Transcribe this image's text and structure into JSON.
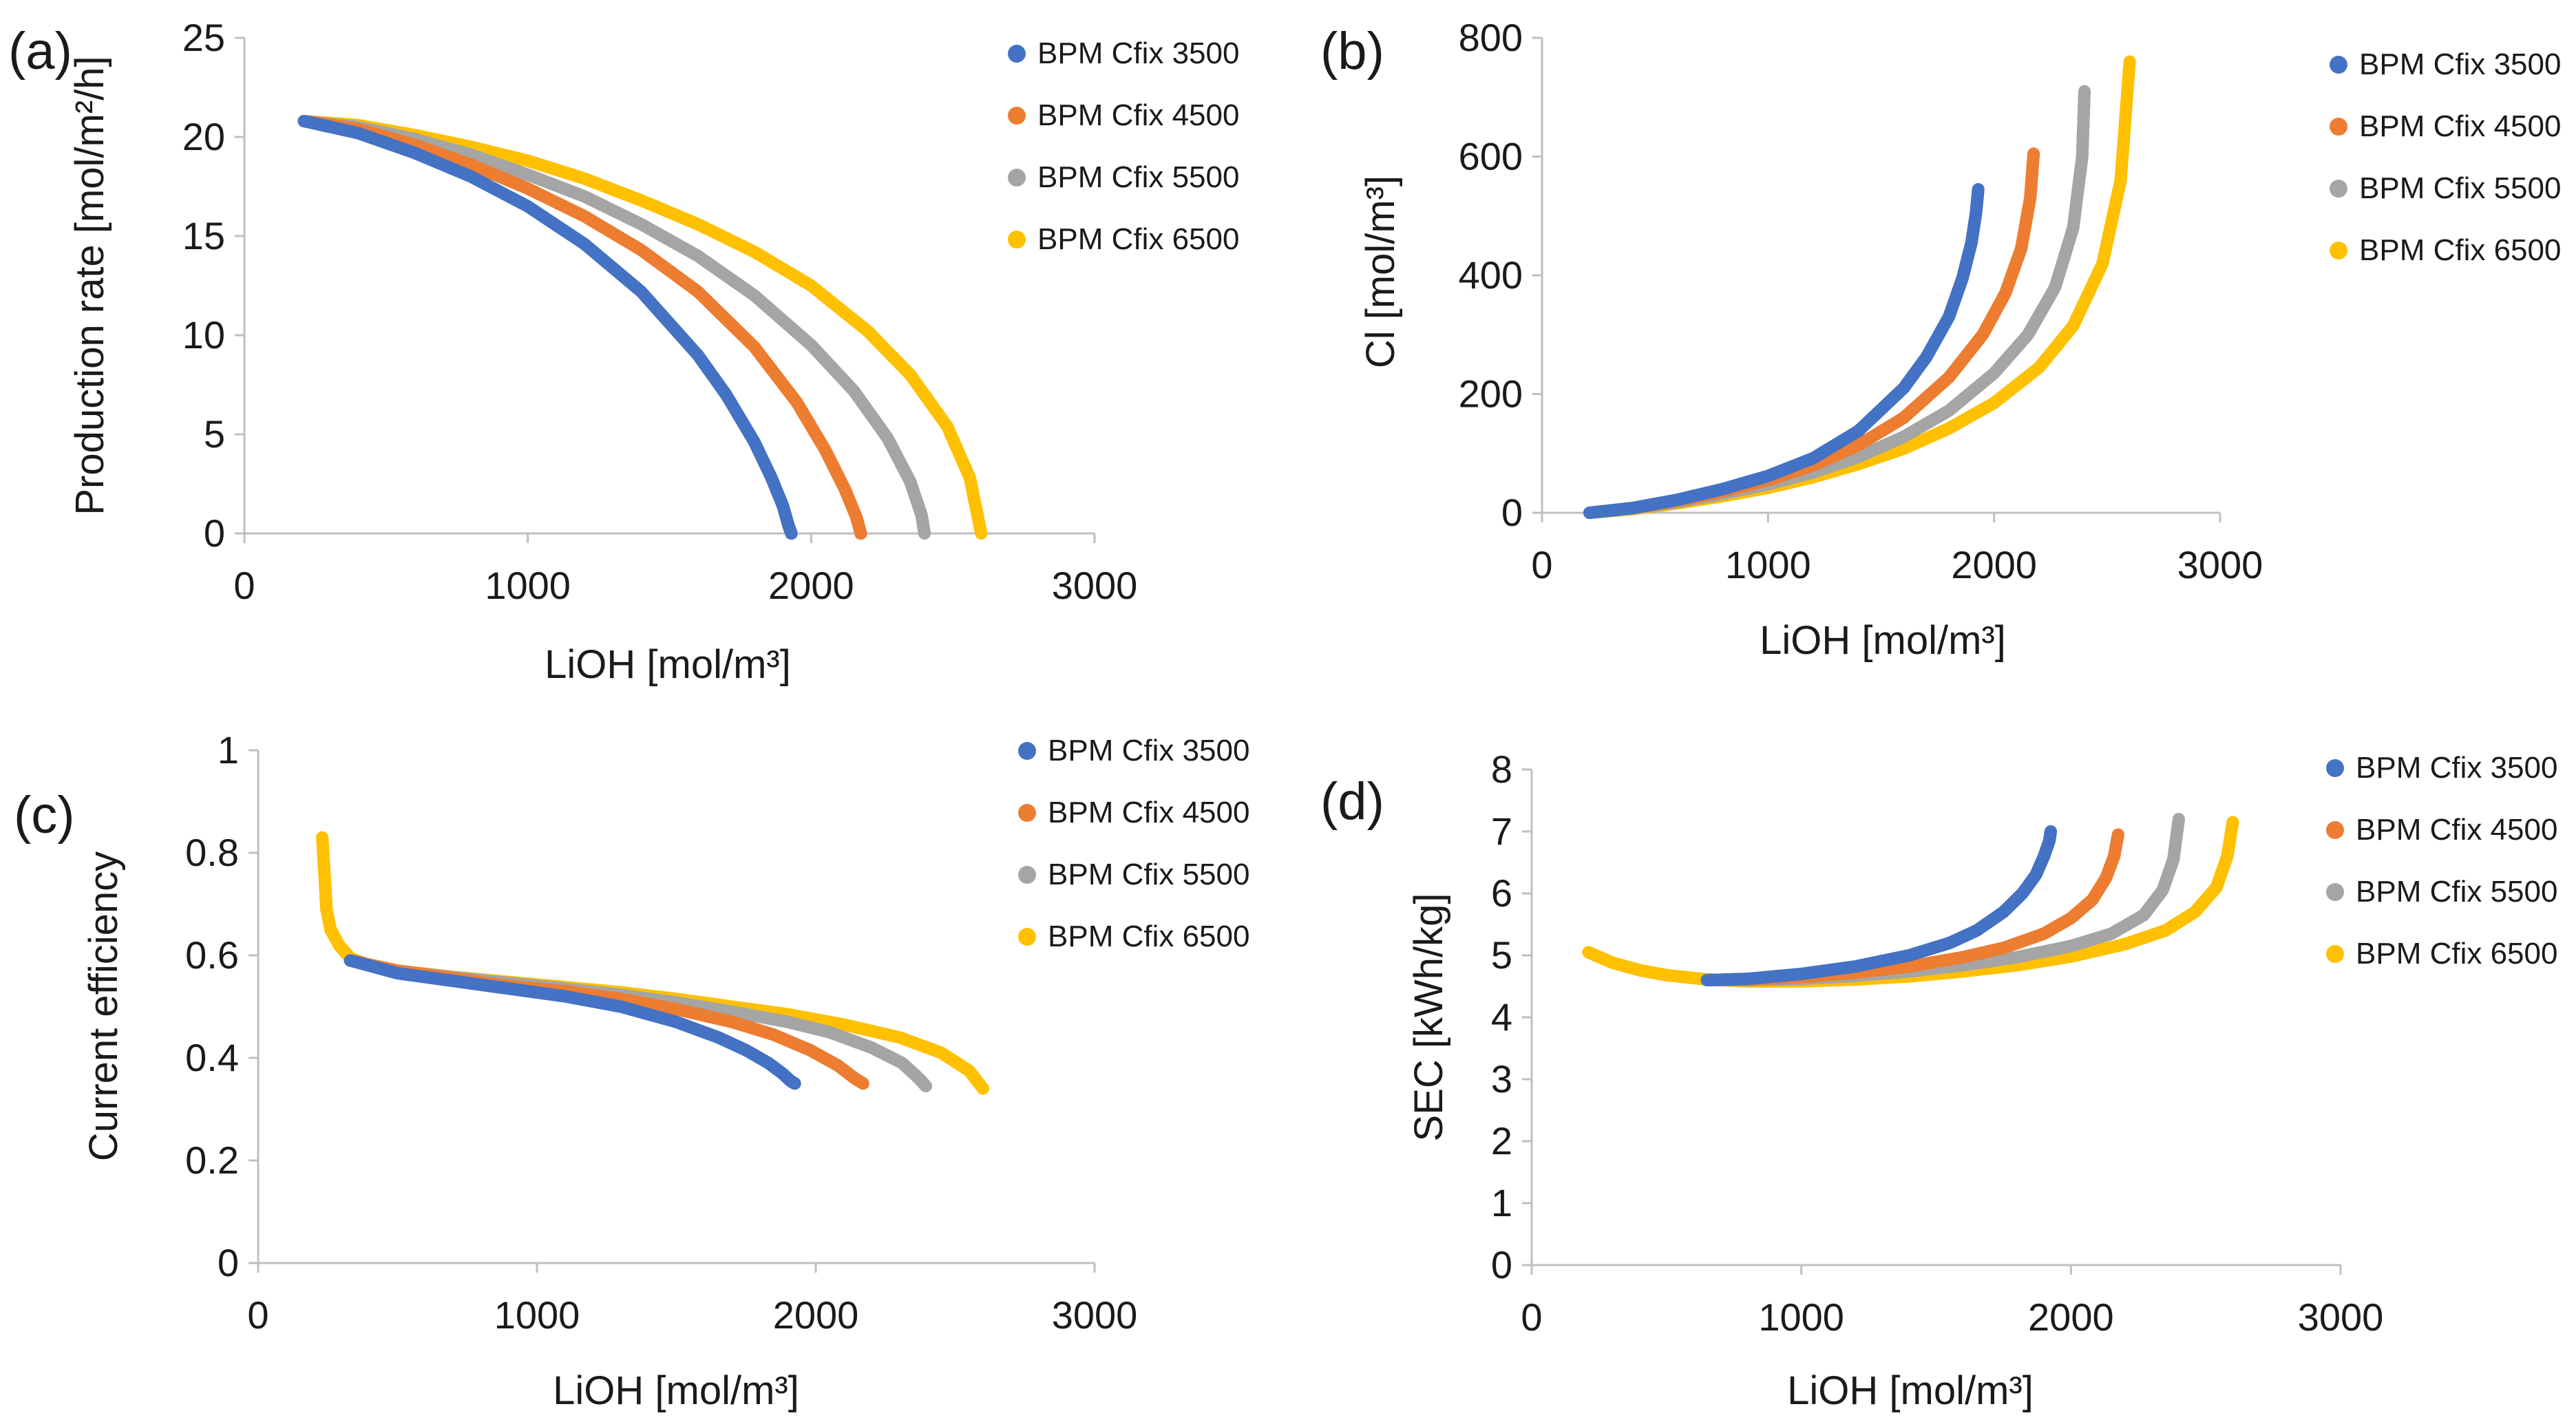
{
  "figure": {
    "description_panels": [
      "a",
      "b",
      "c",
      "d"
    ]
  },
  "chart_data": [
    {
      "panel": "(a)",
      "type": "scatter",
      "xlabel": "LiOH [mol/m³]",
      "ylabel": "Production rate [mol/m²/h]",
      "xlim": [
        0,
        3000
      ],
      "ylim": [
        0,
        25
      ],
      "xticks": [
        0,
        1000,
        2000,
        3000
      ],
      "yticks": [
        0,
        5,
        10,
        15,
        20,
        25
      ],
      "legend_position": "top-right",
      "series": [
        {
          "name": "BPM Cfix 3500",
          "color": "#4472C4",
          "x": [
            210,
            400,
            600,
            800,
            1000,
            1200,
            1400,
            1600,
            1700,
            1800,
            1860,
            1900,
            1920,
            1930,
            1930
          ],
          "y": [
            20.8,
            20.2,
            19.2,
            18.0,
            16.5,
            14.6,
            12.2,
            9.0,
            7.0,
            4.6,
            2.8,
            1.4,
            0.4,
            0.0,
            0.0
          ]
        },
        {
          "name": "BPM Cfix 4500",
          "color": "#ED7D31",
          "x": [
            210,
            400,
            600,
            800,
            1000,
            1200,
            1400,
            1600,
            1800,
            1950,
            2050,
            2120,
            2160,
            2175,
            2175
          ],
          "y": [
            20.8,
            20.4,
            19.6,
            18.6,
            17.4,
            16.0,
            14.3,
            12.2,
            9.4,
            6.6,
            4.2,
            2.2,
            0.8,
            0.0,
            0.0
          ]
        },
        {
          "name": "BPM Cfix 5500",
          "color": "#A5A5A5",
          "x": [
            210,
            400,
            600,
            800,
            1000,
            1200,
            1400,
            1600,
            1800,
            2000,
            2150,
            2270,
            2350,
            2390,
            2400
          ],
          "y": [
            20.8,
            20.5,
            19.9,
            19.1,
            18.1,
            17.0,
            15.6,
            14.0,
            12.0,
            9.5,
            7.2,
            4.8,
            2.6,
            0.9,
            0.0
          ]
        },
        {
          "name": "BPM Cfix 6500",
          "color": "#FFC000",
          "x": [
            210,
            400,
            600,
            800,
            1000,
            1200,
            1400,
            1600,
            1800,
            2000,
            2200,
            2350,
            2480,
            2560,
            2600
          ],
          "y": [
            20.8,
            20.6,
            20.1,
            19.5,
            18.8,
            17.9,
            16.8,
            15.6,
            14.2,
            12.5,
            10.2,
            8.0,
            5.4,
            2.8,
            0.0
          ]
        }
      ]
    },
    {
      "panel": "(b)",
      "type": "scatter",
      "xlabel": "LiOH [mol/m³]",
      "ylabel": "Cl [mol/m³]",
      "xlim": [
        0,
        3000
      ],
      "ylim": [
        0,
        800
      ],
      "xticks": [
        0,
        1000,
        2000,
        3000
      ],
      "yticks": [
        0,
        200,
        400,
        600,
        800
      ],
      "legend_position": "top-right",
      "series": [
        {
          "name": "BPM Cfix 3500",
          "color": "#4472C4",
          "x": [
            210,
            400,
            600,
            800,
            1000,
            1200,
            1400,
            1600,
            1700,
            1800,
            1860,
            1900,
            1920,
            1930
          ],
          "y": [
            0,
            8,
            22,
            40,
            62,
            92,
            138,
            210,
            262,
            330,
            395,
            455,
            505,
            545
          ]
        },
        {
          "name": "BPM Cfix 4500",
          "color": "#ED7D31",
          "x": [
            210,
            400,
            600,
            800,
            1000,
            1200,
            1400,
            1600,
            1800,
            1950,
            2050,
            2120,
            2160,
            2175
          ],
          "y": [
            0,
            8,
            20,
            36,
            55,
            80,
            114,
            160,
            228,
            300,
            370,
            445,
            530,
            605
          ]
        },
        {
          "name": "BPM Cfix 5500",
          "color": "#A5A5A5",
          "x": [
            210,
            400,
            600,
            800,
            1000,
            1200,
            1400,
            1600,
            1800,
            2000,
            2150,
            2270,
            2350,
            2390,
            2400
          ],
          "y": [
            0,
            7,
            18,
            32,
            48,
            68,
            94,
            128,
            172,
            235,
            300,
            380,
            480,
            600,
            710
          ]
        },
        {
          "name": "BPM Cfix 6500",
          "color": "#FFC000",
          "x": [
            210,
            400,
            600,
            800,
            1000,
            1200,
            1400,
            1600,
            1800,
            2000,
            2200,
            2350,
            2480,
            2560,
            2600
          ],
          "y": [
            0,
            6,
            16,
            28,
            42,
            60,
            82,
            108,
            142,
            185,
            245,
            315,
            420,
            560,
            760
          ]
        }
      ]
    },
    {
      "panel": "(c)",
      "type": "scatter",
      "xlabel": "LiOH [mol/m³]",
      "ylabel": "Current efficiency",
      "xlim": [
        0,
        3000
      ],
      "ylim": [
        0,
        1
      ],
      "xticks": [
        0,
        1000,
        2000,
        3000
      ],
      "yticks": [
        0,
        0.2,
        0.4,
        0.6,
        0.8,
        1
      ],
      "legend_position": "top-right",
      "series": [
        {
          "name": "BPM Cfix 3500",
          "color": "#4472C4",
          "x": [
            330,
            500,
            700,
            900,
            1100,
            1300,
            1500,
            1650,
            1750,
            1830,
            1880,
            1910,
            1925
          ],
          "y": [
            0.59,
            0.565,
            0.55,
            0.535,
            0.52,
            0.5,
            0.47,
            0.44,
            0.415,
            0.39,
            0.37,
            0.355,
            0.35
          ]
        },
        {
          "name": "BPM Cfix 4500",
          "color": "#ED7D31",
          "x": [
            330,
            500,
            700,
            900,
            1100,
            1300,
            1500,
            1700,
            1850,
            1980,
            2080,
            2140,
            2170
          ],
          "y": [
            0.59,
            0.57,
            0.555,
            0.54,
            0.53,
            0.515,
            0.495,
            0.47,
            0.445,
            0.415,
            0.385,
            0.36,
            0.35
          ]
        },
        {
          "name": "BPM Cfix 5500",
          "color": "#A5A5A5",
          "x": [
            330,
            500,
            700,
            900,
            1100,
            1300,
            1500,
            1700,
            1900,
            2050,
            2200,
            2310,
            2370,
            2395
          ],
          "y": [
            0.59,
            0.57,
            0.557,
            0.546,
            0.535,
            0.523,
            0.508,
            0.49,
            0.47,
            0.45,
            0.42,
            0.39,
            0.36,
            0.345
          ]
        },
        {
          "name": "BPM Cfix 6500",
          "color": "#FFC000",
          "x": [
            230,
            240,
            245,
            260,
            290,
            330,
            400,
            500,
            700,
            900,
            1100,
            1300,
            1500,
            1700,
            1900,
            2100,
            2300,
            2450,
            2550,
            2600
          ],
          "y": [
            0.83,
            0.74,
            0.69,
            0.65,
            0.62,
            0.595,
            0.58,
            0.57,
            0.558,
            0.548,
            0.538,
            0.528,
            0.515,
            0.5,
            0.485,
            0.465,
            0.44,
            0.41,
            0.375,
            0.34
          ]
        }
      ]
    },
    {
      "panel": "(d)",
      "type": "scatter",
      "xlabel": "LiOH [mol/m³]",
      "ylabel": "SEC [kWh/kg]",
      "xlim": [
        0,
        3000
      ],
      "ylim": [
        0,
        8
      ],
      "xticks": [
        0,
        1000,
        2000,
        3000
      ],
      "yticks": [
        0,
        1,
        2,
        3,
        4,
        5,
        6,
        7,
        8
      ],
      "legend_position": "top-right",
      "series": [
        {
          "name": "BPM Cfix 3500",
          "color": "#4472C4",
          "x": [
            650,
            800,
            1000,
            1200,
            1400,
            1550,
            1650,
            1750,
            1820,
            1870,
            1900,
            1920,
            1925
          ],
          "y": [
            4.6,
            4.62,
            4.7,
            4.82,
            5.0,
            5.2,
            5.4,
            5.7,
            6.0,
            6.3,
            6.6,
            6.85,
            7.0
          ]
        },
        {
          "name": "BPM Cfix 4500",
          "color": "#ED7D31",
          "x": [
            650,
            800,
            1000,
            1200,
            1400,
            1600,
            1750,
            1900,
            2000,
            2080,
            2130,
            2160,
            2175
          ],
          "y": [
            4.6,
            4.61,
            4.65,
            4.72,
            4.82,
            4.97,
            5.12,
            5.35,
            5.6,
            5.9,
            6.25,
            6.6,
            6.95
          ]
        },
        {
          "name": "BPM Cfix 5500",
          "color": "#A5A5A5",
          "x": [
            650,
            800,
            1000,
            1200,
            1400,
            1600,
            1800,
            2000,
            2150,
            2270,
            2340,
            2380,
            2400
          ],
          "y": [
            4.6,
            4.6,
            4.62,
            4.67,
            4.74,
            4.84,
            4.97,
            5.15,
            5.35,
            5.65,
            6.05,
            6.55,
            7.2
          ]
        },
        {
          "name": "BPM Cfix 6500",
          "color": "#FFC000",
          "x": [
            210,
            300,
            400,
            500,
            650,
            800,
            1000,
            1200,
            1400,
            1600,
            1800,
            2000,
            2200,
            2350,
            2460,
            2540,
            2580,
            2600
          ],
          "y": [
            5.05,
            4.88,
            4.76,
            4.68,
            4.61,
            4.58,
            4.58,
            4.61,
            4.66,
            4.74,
            4.84,
            4.98,
            5.18,
            5.4,
            5.7,
            6.1,
            6.6,
            7.15
          ]
        }
      ]
    }
  ]
}
